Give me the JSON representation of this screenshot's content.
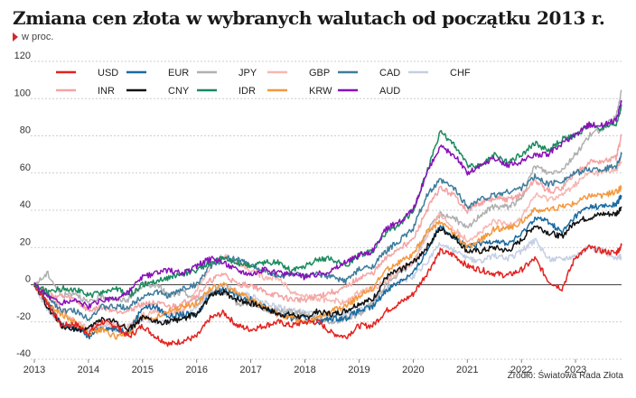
{
  "title": "Zmiana cen złota w wybranych walutach od początku 2013 r.",
  "subtitle": "w proc.",
  "source": "Źródło: Światowa Rada Złota",
  "chart_data": {
    "type": "line",
    "ylim": [
      -40,
      120
    ],
    "yticks": [
      -40,
      -20,
      0,
      20,
      40,
      60,
      80,
      100,
      120
    ],
    "xlim": [
      2013.0,
      2023.85
    ],
    "xticks": [
      2013,
      2014,
      2015,
      2016,
      2017,
      2018,
      2019,
      2020,
      2021,
      2022,
      2023
    ],
    "grid": "horizontal dashed",
    "legend_position": "top-left",
    "x": [
      2013.0,
      2013.25,
      2013.5,
      2013.75,
      2014.0,
      2014.25,
      2014.5,
      2014.75,
      2015.0,
      2015.25,
      2015.5,
      2015.75,
      2016.0,
      2016.25,
      2016.5,
      2016.75,
      2017.0,
      2017.25,
      2017.5,
      2017.75,
      2018.0,
      2018.25,
      2018.5,
      2018.75,
      2019.0,
      2019.25,
      2019.5,
      2019.75,
      2020.0,
      2020.25,
      2020.5,
      2020.75,
      2021.0,
      2021.25,
      2021.5,
      2021.75,
      2022.0,
      2022.25,
      2022.5,
      2022.75,
      2023.0,
      2023.25,
      2023.5,
      2023.75,
      2023.85
    ],
    "series": [
      {
        "name": "USD",
        "color": "#e3221f",
        "values": [
          0,
          -10,
          -22,
          -21,
          -26,
          -20,
          -22,
          -28,
          -22,
          -28,
          -32,
          -30,
          -28,
          -18,
          -15,
          -22,
          -24,
          -22,
          -20,
          -22,
          -20,
          -20,
          -26,
          -28,
          -22,
          -22,
          -14,
          -10,
          -5,
          6,
          18,
          16,
          10,
          8,
          6,
          5,
          8,
          14,
          2,
          -2,
          15,
          20,
          18,
          17,
          21
        ]
      },
      {
        "name": "EUR",
        "color": "#1a6aa0",
        "values": [
          0,
          -9,
          -22,
          -23,
          -28,
          -23,
          -24,
          -25,
          -12,
          -12,
          -17,
          -16,
          -16,
          -5,
          -2,
          -6,
          -8,
          -12,
          -15,
          -18,
          -18,
          -20,
          -18,
          -18,
          -14,
          -12,
          -3,
          2,
          6,
          18,
          32,
          26,
          20,
          22,
          24,
          22,
          27,
          36,
          34,
          28,
          37,
          42,
          42,
          43,
          48
        ]
      },
      {
        "name": "JPY",
        "color": "#b0b0b0",
        "values": [
          0,
          6,
          -6,
          -4,
          -10,
          -6,
          -8,
          -8,
          0,
          0,
          -6,
          -4,
          -8,
          -4,
          -4,
          -10,
          -10,
          -14,
          -14,
          -14,
          -16,
          -18,
          -20,
          -18,
          -16,
          -10,
          0,
          6,
          12,
          28,
          38,
          36,
          30,
          38,
          42,
          42,
          46,
          64,
          60,
          62,
          70,
          80,
          84,
          90,
          104
        ]
      },
      {
        "name": "GBP",
        "color": "#f6b7b2",
        "values": [
          0,
          -3,
          -14,
          -20,
          -24,
          -20,
          -22,
          -22,
          -16,
          -14,
          -16,
          -14,
          -2,
          10,
          16,
          12,
          8,
          4,
          4,
          -4,
          -6,
          -8,
          -8,
          -10,
          -4,
          -2,
          2,
          8,
          12,
          26,
          38,
          30,
          24,
          28,
          34,
          32,
          36,
          48,
          46,
          48,
          54,
          60,
          60,
          62,
          66
        ]
      },
      {
        "name": "CAD",
        "color": "#3e7c9c",
        "values": [
          0,
          -6,
          -14,
          -14,
          -18,
          -12,
          -12,
          -12,
          -6,
          -4,
          -6,
          -2,
          0,
          10,
          14,
          14,
          10,
          8,
          4,
          6,
          4,
          6,
          4,
          2,
          8,
          10,
          18,
          24,
          30,
          48,
          56,
          52,
          42,
          46,
          48,
          50,
          52,
          58,
          54,
          56,
          60,
          62,
          62,
          64,
          70
        ]
      },
      {
        "name": "CHF",
        "color": "#c5cfe3",
        "values": [
          0,
          -14,
          -22,
          -22,
          -24,
          -22,
          -24,
          -22,
          -18,
          -20,
          -20,
          -16,
          -12,
          -4,
          0,
          -4,
          -6,
          -10,
          -12,
          -14,
          -14,
          -16,
          -16,
          -16,
          -14,
          -10,
          -2,
          2,
          4,
          12,
          22,
          18,
          14,
          12,
          16,
          14,
          18,
          24,
          14,
          14,
          16,
          20,
          18,
          14,
          15
        ]
      },
      {
        "name": "INR",
        "color": "#f4a3a3",
        "values": [
          0,
          -6,
          -6,
          -8,
          -14,
          -12,
          -14,
          -14,
          -10,
          -10,
          -12,
          -10,
          -6,
          2,
          6,
          0,
          0,
          -4,
          -6,
          -8,
          -8,
          -6,
          -4,
          -2,
          4,
          6,
          14,
          20,
          24,
          40,
          52,
          48,
          40,
          44,
          46,
          46,
          48,
          56,
          50,
          52,
          60,
          66,
          66,
          68,
          80
        ]
      },
      {
        "name": "CNY",
        "color": "#111111",
        "values": [
          0,
          -12,
          -22,
          -24,
          -24,
          -18,
          -20,
          -24,
          -18,
          -20,
          -20,
          -18,
          -16,
          -6,
          -4,
          -8,
          -10,
          -12,
          -16,
          -16,
          -18,
          -14,
          -16,
          -14,
          -10,
          -8,
          4,
          8,
          12,
          20,
          30,
          26,
          18,
          18,
          20,
          18,
          24,
          32,
          28,
          26,
          34,
          36,
          38,
          38,
          42
        ]
      },
      {
        "name": "IDR",
        "color": "#1a8a5e",
        "values": [
          0,
          -4,
          -2,
          -2,
          -6,
          -4,
          -2,
          -6,
          0,
          2,
          4,
          6,
          8,
          12,
          14,
          12,
          10,
          12,
          12,
          8,
          10,
          14,
          14,
          10,
          16,
          18,
          28,
          32,
          40,
          60,
          82,
          76,
          64,
          64,
          70,
          66,
          70,
          76,
          72,
          78,
          80,
          86,
          84,
          86,
          96
        ]
      },
      {
        "name": "KRW",
        "color": "#f3983e",
        "values": [
          0,
          -10,
          -16,
          -20,
          -26,
          -24,
          -28,
          -26,
          -18,
          -18,
          -14,
          -12,
          -10,
          -2,
          0,
          -4,
          -8,
          -12,
          -16,
          -18,
          -20,
          -18,
          -14,
          -12,
          -6,
          -2,
          8,
          12,
          16,
          28,
          34,
          28,
          20,
          24,
          30,
          30,
          34,
          40,
          40,
          42,
          44,
          48,
          48,
          50,
          52
        ]
      },
      {
        "name": "AUD",
        "color": "#8a10b8",
        "values": [
          0,
          -6,
          -10,
          -8,
          -12,
          -8,
          -8,
          -4,
          4,
          6,
          8,
          6,
          10,
          14,
          12,
          8,
          6,
          8,
          6,
          6,
          4,
          6,
          8,
          12,
          16,
          18,
          30,
          34,
          40,
          60,
          74,
          70,
          60,
          64,
          68,
          64,
          66,
          70,
          70,
          76,
          80,
          86,
          86,
          88,
          98
        ]
      }
    ]
  }
}
